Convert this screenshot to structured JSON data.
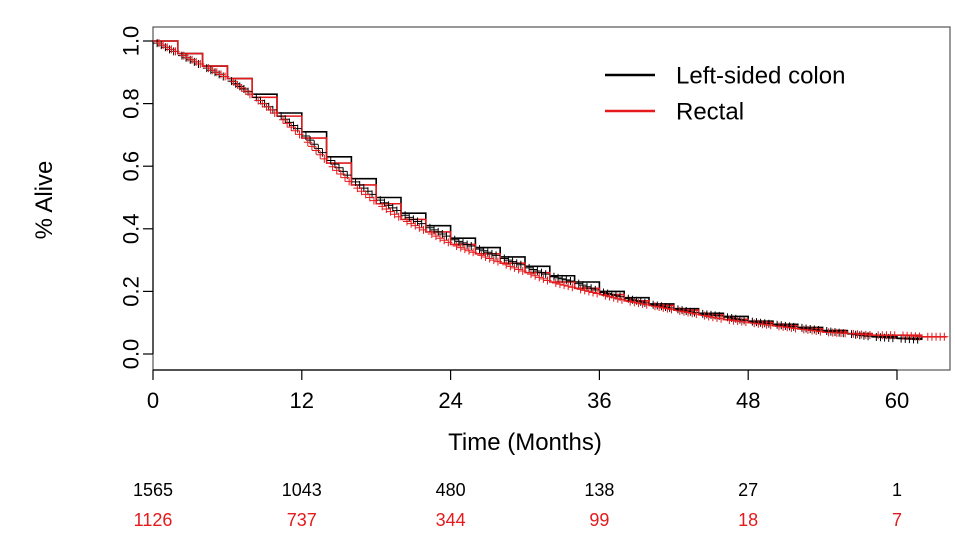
{
  "colors": {
    "left_sided_colon": "#000000",
    "rectal": "#e41a1c",
    "axis": "#000000",
    "frame": "#555555"
  },
  "chart_data": {
    "type": "line",
    "subtype": "kaplan-meier",
    "title": "",
    "xlabel": "Time (Months)",
    "ylabel": "% Alive",
    "xlim": [
      0,
      64
    ],
    "ylim": [
      0,
      1.0
    ],
    "x_ticks": [
      0,
      12,
      24,
      36,
      48,
      60
    ],
    "x_tick_labels": [
      "0",
      "12",
      "24",
      "36",
      "48",
      "60"
    ],
    "y_ticks": [
      0.0,
      0.2,
      0.4,
      0.6,
      0.8,
      1.0
    ],
    "y_tick_labels": [
      "0.0",
      "0.2",
      "0.4",
      "0.6",
      "0.8",
      "1.0"
    ],
    "grid": false,
    "legend_position": "top-right",
    "series": [
      {
        "name": "Left-sided colon",
        "color": "#000000",
        "x": [
          0,
          2,
          4,
          6,
          8,
          10,
          12,
          14,
          16,
          18,
          20,
          22,
          24,
          26,
          28,
          30,
          32,
          34,
          36,
          38,
          40,
          42,
          44,
          46,
          48,
          50,
          52,
          54,
          56,
          58,
          60,
          62
        ],
        "y": [
          1.0,
          0.96,
          0.92,
          0.88,
          0.83,
          0.77,
          0.71,
          0.63,
          0.56,
          0.5,
          0.45,
          0.41,
          0.37,
          0.34,
          0.31,
          0.28,
          0.25,
          0.23,
          0.2,
          0.18,
          0.16,
          0.145,
          0.13,
          0.12,
          0.105,
          0.095,
          0.085,
          0.075,
          0.065,
          0.055,
          0.05,
          0.045
        ]
      },
      {
        "name": "Rectal",
        "color": "#e41a1c",
        "x": [
          0,
          2,
          4,
          6,
          8,
          10,
          12,
          14,
          16,
          18,
          20,
          22,
          24,
          26,
          28,
          30,
          32,
          34,
          36,
          38,
          40,
          42,
          44,
          46,
          48,
          50,
          52,
          54,
          56,
          58,
          60,
          62,
          64
        ],
        "y": [
          1.0,
          0.96,
          0.92,
          0.88,
          0.82,
          0.76,
          0.69,
          0.61,
          0.54,
          0.48,
          0.43,
          0.39,
          0.35,
          0.32,
          0.29,
          0.26,
          0.23,
          0.21,
          0.19,
          0.17,
          0.155,
          0.14,
          0.125,
          0.11,
          0.1,
          0.09,
          0.08,
          0.07,
          0.065,
          0.06,
          0.06,
          0.055,
          0.055
        ]
      }
    ],
    "risk_table": {
      "times": [
        0,
        12,
        24,
        36,
        48,
        60
      ],
      "rows": [
        {
          "name": "Left-sided colon",
          "color": "#000000",
          "values": [
            "1565",
            "1043",
            "480",
            "138",
            "27",
            "1"
          ]
        },
        {
          "name": "Rectal",
          "color": "#e41a1c",
          "values": [
            "1126",
            "737",
            "344",
            "99",
            "18",
            "7"
          ]
        }
      ]
    }
  }
}
